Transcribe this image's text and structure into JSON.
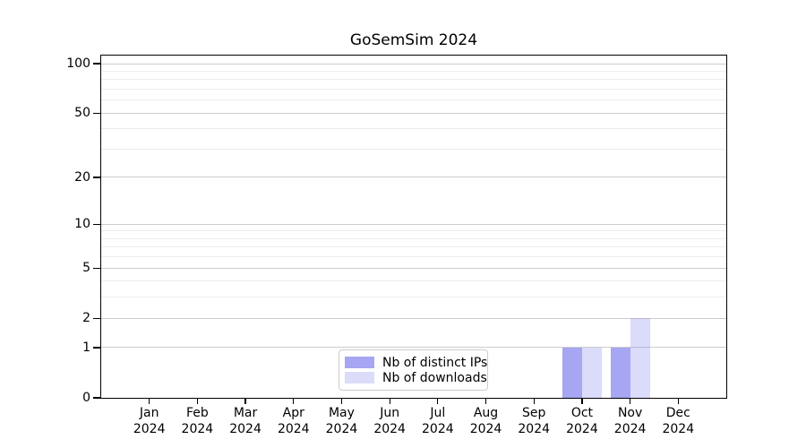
{
  "chart_data": {
    "type": "bar",
    "title": "GoSemSim 2024",
    "year_label": "2024",
    "categories": [
      "Jan",
      "Feb",
      "Mar",
      "Apr",
      "May",
      "Jun",
      "Jul",
      "Aug",
      "Sep",
      "Oct",
      "Nov",
      "Dec"
    ],
    "series": [
      {
        "name": "Nb of distinct IPs",
        "color": "#a6a6f2",
        "values": [
          0,
          0,
          0,
          0,
          0,
          0,
          0,
          0,
          0,
          1,
          1,
          0
        ]
      },
      {
        "name": "Nb of downloads",
        "color": "rgba(136,136,238,0.3)",
        "values": [
          0,
          0,
          0,
          0,
          0,
          0,
          0,
          0,
          0,
          1,
          2,
          0
        ]
      }
    ],
    "xlabel": "",
    "ylabel": "",
    "yscale": "log1p",
    "ylim": [
      0,
      112
    ],
    "y_ticks": [
      0,
      1,
      2,
      5,
      10,
      20,
      50,
      100
    ],
    "y_minor_ticks": [
      3,
      4,
      6,
      7,
      8,
      9,
      30,
      40,
      60,
      70,
      80,
      90
    ],
    "grid": true,
    "legend_position": "lower center",
    "colors": {
      "frame": "#000000",
      "grid_major": "#cccccc",
      "grid_minor": "#ececec",
      "text": "#000000"
    }
  }
}
